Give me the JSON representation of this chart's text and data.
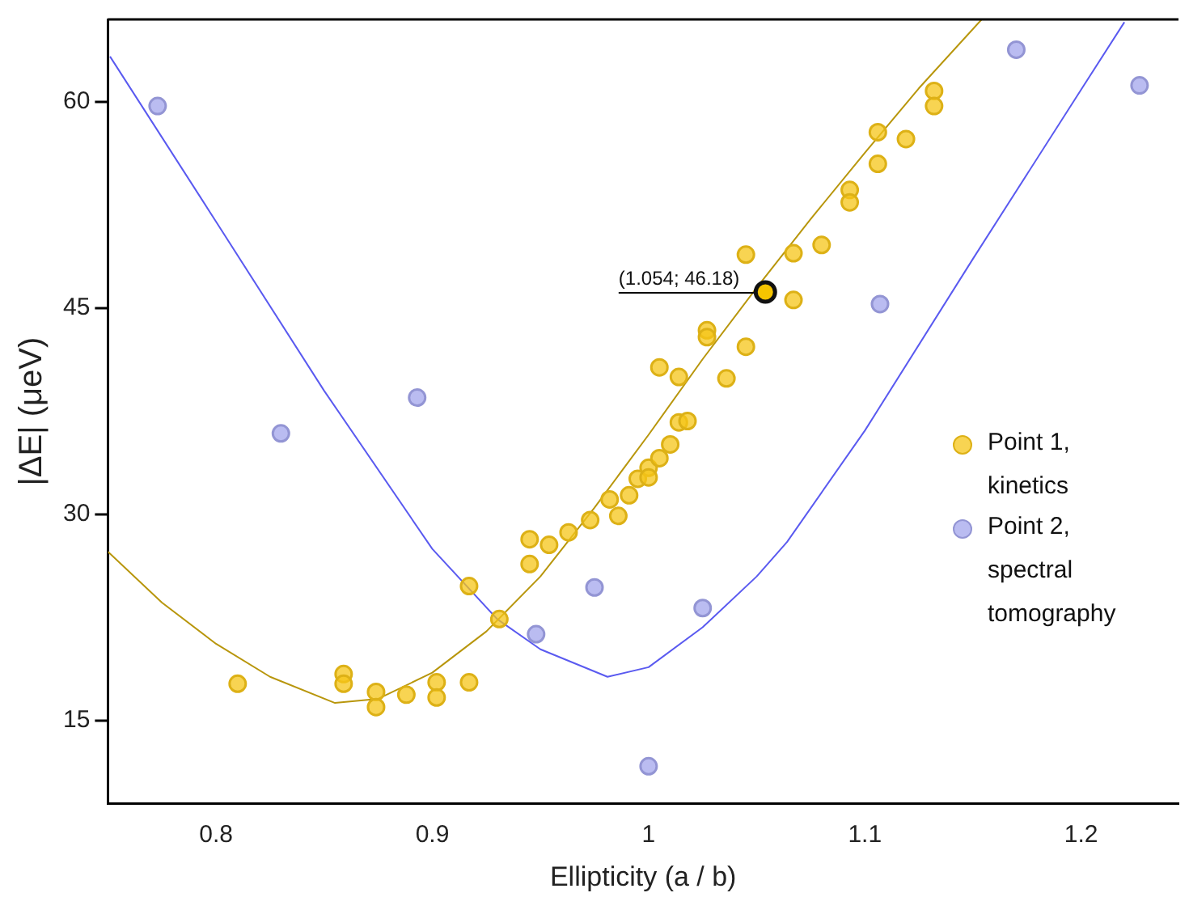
{
  "chart_data": {
    "type": "scatter",
    "xlabel": "Ellipticity (a / b)",
    "ylabel": "|ΔE| (μeV)",
    "xlim": [
      0.75,
      1.245
    ],
    "ylim": [
      9,
      66
    ],
    "xticks": [
      0.8,
      0.9,
      1,
      1.1,
      1.2
    ],
    "yticks": [
      15,
      30,
      45,
      60
    ],
    "grid": false,
    "legend": "right",
    "marker": "circle",
    "annotations": [
      {
        "text": "(1.054; 46.18)",
        "x": 1.054,
        "y": 46.18
      }
    ],
    "series": [
      {
        "name": "Point 1, kinetics",
        "color": "#f5c518",
        "x": [
          0.81,
          0.859,
          0.859,
          0.874,
          0.874,
          0.888,
          0.902,
          0.902,
          0.917,
          0.917,
          0.931,
          0.945,
          0.945,
          0.954,
          0.963,
          0.973,
          0.982,
          0.986,
          0.991,
          0.995,
          1.0,
          1.0,
          1.005,
          1.01,
          1.014,
          1.018,
          1.005,
          1.014,
          1.027,
          1.027,
          1.036,
          1.045,
          1.045,
          1.054,
          1.067,
          1.067,
          1.08,
          1.093,
          1.093,
          1.106,
          1.106,
          1.119,
          1.132,
          1.132
        ],
        "values": [
          17.7,
          18.4,
          17.7,
          17.1,
          16.0,
          16.9,
          17.8,
          16.7,
          17.8,
          24.8,
          22.4,
          28.2,
          26.4,
          27.8,
          28.7,
          29.6,
          31.1,
          29.9,
          31.4,
          32.6,
          33.4,
          32.7,
          34.1,
          35.1,
          36.7,
          36.8,
          40.7,
          40.0,
          43.4,
          42.9,
          39.9,
          48.9,
          42.2,
          46.18,
          49.0,
          45.6,
          49.6,
          53.6,
          52.7,
          57.8,
          55.5,
          57.3,
          60.8,
          59.7
        ]
      },
      {
        "name": "Point 2, spectral tomography",
        "color": "#a3a6ec",
        "x": [
          0.773,
          0.83,
          0.893,
          0.948,
          0.975,
          1.0,
          1.025,
          1.107,
          1.17,
          1.227
        ],
        "values": [
          59.7,
          35.9,
          38.5,
          21.3,
          24.7,
          11.7,
          23.2,
          45.3,
          63.8,
          61.2
        ]
      },
      {
        "type": "line",
        "color": "#b8960c",
        "marker": "none",
        "x": [
          0.75,
          0.775,
          0.8,
          0.825,
          0.855,
          0.875,
          0.9,
          0.925,
          0.95,
          0.975,
          1.0,
          1.025,
          1.05,
          1.075,
          1.1,
          1.125,
          1.154
        ],
        "values": [
          27.3,
          23.6,
          20.6,
          18.2,
          16.3,
          16.6,
          18.5,
          21.5,
          25.5,
          30.5,
          35.8,
          41.3,
          46.5,
          51.5,
          56.3,
          61.0,
          66
        ]
      },
      {
        "type": "line",
        "color": "#5a5af0",
        "marker": "none",
        "x": [
          0.751,
          0.8,
          0.85,
          0.9,
          0.93,
          0.95,
          0.981,
          1.0,
          1.025,
          1.05,
          1.064,
          1.1,
          1.15,
          1.2,
          1.22
        ],
        "values": [
          63.3,
          51.3,
          39.0,
          27.5,
          22.4,
          20.2,
          18.2,
          18.9,
          21.8,
          25.5,
          28.0,
          36.1,
          48.6,
          60.9,
          65.8
        ]
      }
    ]
  }
}
